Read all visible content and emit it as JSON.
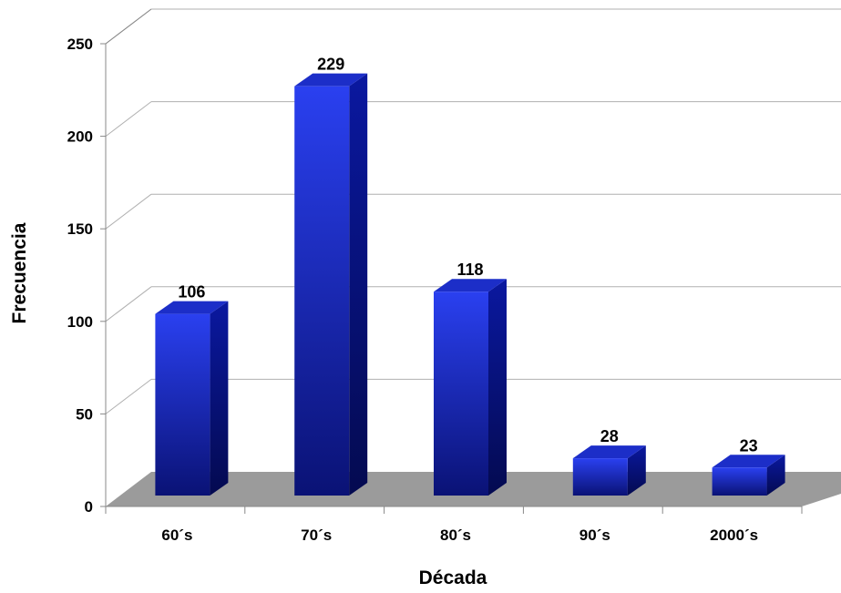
{
  "chart_data": {
    "type": "bar",
    "style": "3d-column",
    "categories": [
      "60´s",
      "70´s",
      "80´s",
      "90´s",
      "2000´s"
    ],
    "values": [
      106,
      229,
      118,
      28,
      23
    ],
    "data_labels": [
      "106",
      "229",
      "118",
      "28",
      "23"
    ],
    "title": "",
    "xlabel": "Década",
    "ylabel": "Frecuencia",
    "ylim": [
      0,
      250
    ],
    "yticks": [
      0,
      50,
      100,
      150,
      200,
      250
    ],
    "ytick_labels": [
      "0",
      "50",
      "100",
      "150",
      "200",
      "250"
    ],
    "grid": true,
    "legend": "none",
    "colors": {
      "bar_front_top": "#2a40f0",
      "bar_front_bottom": "#0a1275",
      "bar_side": "#061080",
      "bar_top": "#1c2ec8",
      "floor": "#9b9b9b",
      "gridline": "#b0b0b0"
    }
  }
}
